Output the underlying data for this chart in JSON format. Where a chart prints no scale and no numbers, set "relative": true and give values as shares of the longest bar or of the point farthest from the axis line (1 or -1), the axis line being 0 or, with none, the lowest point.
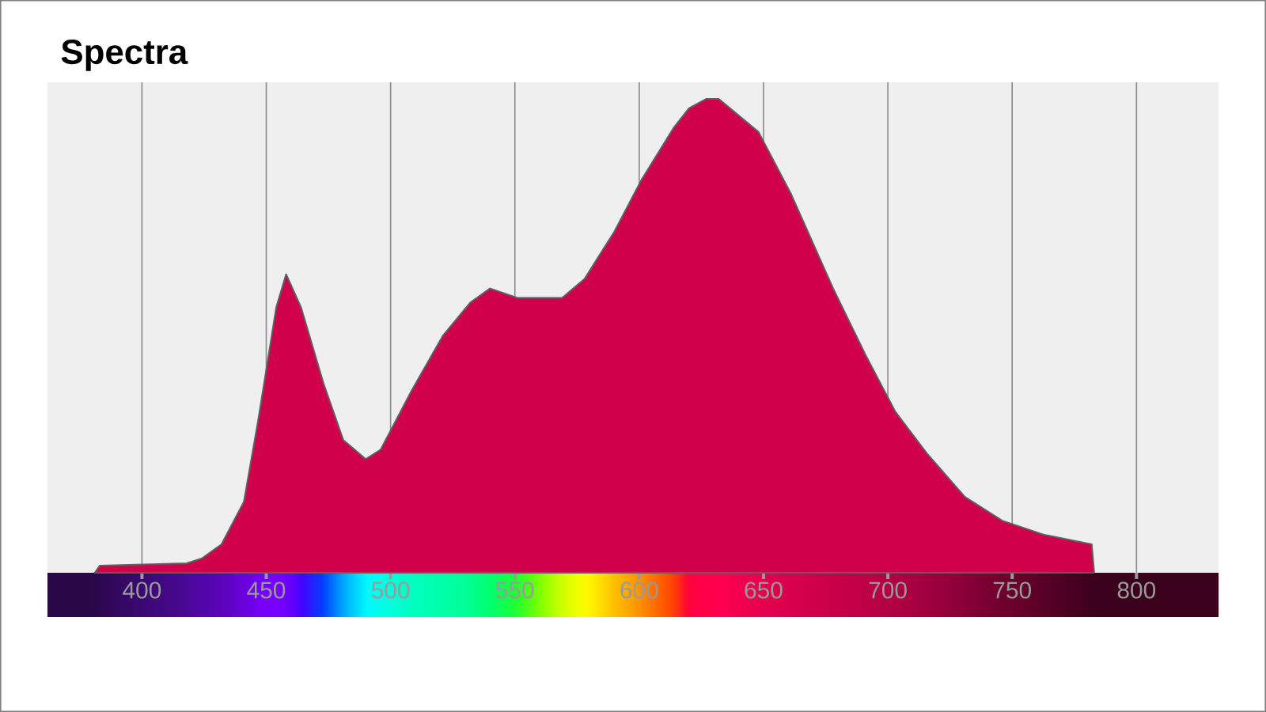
{
  "chart_data": {
    "type": "area",
    "title": "Spectra",
    "relative": true,
    "color": "#d0004a",
    "grid": "x",
    "xlim": [
      362,
      833
    ],
    "xticks": [
      400,
      450,
      500,
      550,
      600,
      650,
      700,
      750,
      800
    ],
    "x": [
      381,
      383,
      418,
      424,
      432,
      441,
      447,
      454,
      458,
      464,
      473,
      481,
      490,
      496,
      508,
      521,
      532,
      540,
      551,
      560,
      569,
      578,
      590,
      601,
      614,
      620,
      627,
      632,
      648,
      661,
      678,
      691,
      703,
      716,
      731,
      746,
      763,
      782,
      783
    ],
    "values": [
      0,
      0.015,
      0.02,
      0.03,
      0.06,
      0.15,
      0.33,
      0.56,
      0.63,
      0.56,
      0.4,
      0.28,
      0.24,
      0.26,
      0.38,
      0.5,
      0.57,
      0.6,
      0.58,
      0.58,
      0.58,
      0.62,
      0.72,
      0.83,
      0.94,
      0.98,
      1,
      1,
      0.93,
      0.8,
      0.6,
      0.46,
      0.34,
      0.25,
      0.16,
      0.11,
      0.08,
      0.06,
      0
    ],
    "colors": [
      "#2a0848",
      "#2c0850",
      "#4a0896",
      "#5006a8",
      "#5a04b8",
      "#6a02dc",
      "#7400f4",
      "#7800ff",
      "#7000ff",
      "#4800ff",
      "#0040ff",
      "#00a8ff",
      "#00f8ff",
      "#00ffe8",
      "#00ffc0",
      "#00ffa8",
      "#00ff90",
      "#00ff70",
      "#20ff30",
      "#80ff00",
      "#d0ff00",
      "#ffff00",
      "#ffc000",
      "#ff8c00",
      "#ff4000",
      "#ff0040",
      "#ff0048",
      "#ff0050",
      "#e8004f",
      "#d8004c",
      "#c80048",
      "#be0046",
      "#b00044",
      "#a0003e",
      "#880036",
      "#70002e",
      "#580026",
      "#3c001c",
      "#3a001c"
    ]
  }
}
